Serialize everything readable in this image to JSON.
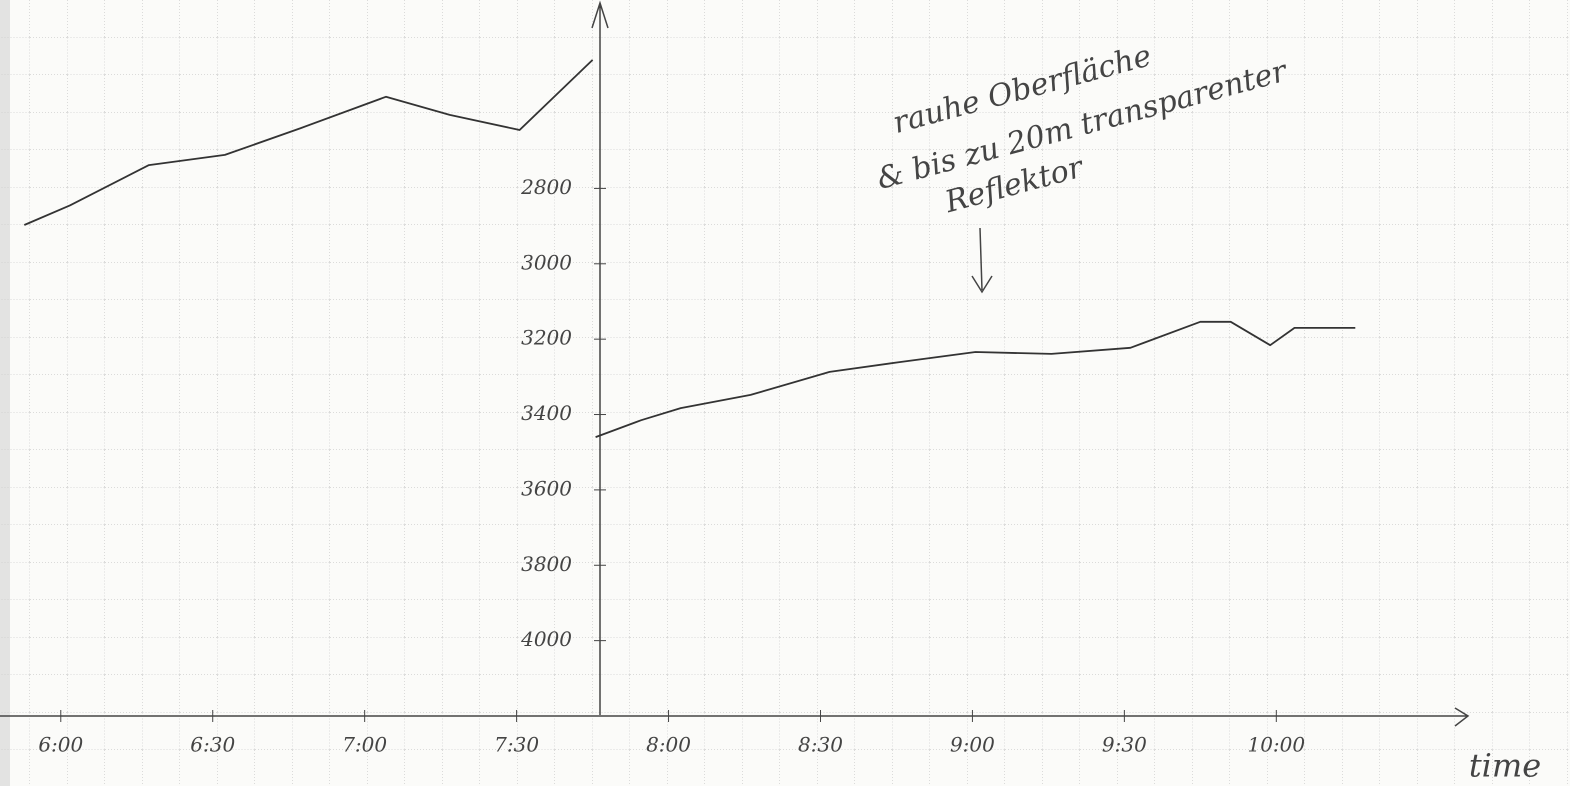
{
  "chart_data": {
    "type": "line",
    "annotation": [
      "rauhe Oberfläche",
      "& bis zu 20m transparenter",
      "Reflektor"
    ],
    "x_label": "time",
    "x": [
      5.88,
      6.03,
      6.29,
      6.54,
      6.79,
      7.07,
      7.28,
      7.51,
      7.75,
      7.755,
      7.76,
      7.91,
      8.04,
      8.27,
      8.53,
      8.76,
      9.01,
      9.26,
      9.52,
      9.75,
      9.85,
      9.98,
      10.06,
      10.26
    ],
    "values": [
      2897,
      2845,
      2738,
      2711,
      2640,
      2557,
      2605,
      2645,
      2459,
      null,
      3460,
      3415,
      3383,
      3348,
      3287,
      3261,
      3234,
      3239,
      3223,
      3154,
      3154,
      3216,
      3170,
      3170
    ],
    "color": "#333333",
    "xlim": [
      5.8,
      10.95
    ],
    "xticks": [
      {
        "value": 6,
        "label": "6:00"
      },
      {
        "value": 6.5,
        "label": "6:30"
      },
      {
        "value": 7,
        "label": "7:00"
      },
      {
        "value": 7.5,
        "label": "7:30"
      },
      {
        "value": 8,
        "label": "8:00"
      },
      {
        "value": 8.5,
        "label": "8:30"
      },
      {
        "value": 9,
        "label": "9:00"
      },
      {
        "value": 9.5,
        "label": "9:30"
      },
      {
        "value": 10,
        "label": "10:00"
      }
    ],
    "ylim": [
      4200,
      2300
    ],
    "yticks": [
      2800,
      3000,
      3200,
      3400,
      3600,
      3800,
      4000
    ],
    "grid": true
  }
}
